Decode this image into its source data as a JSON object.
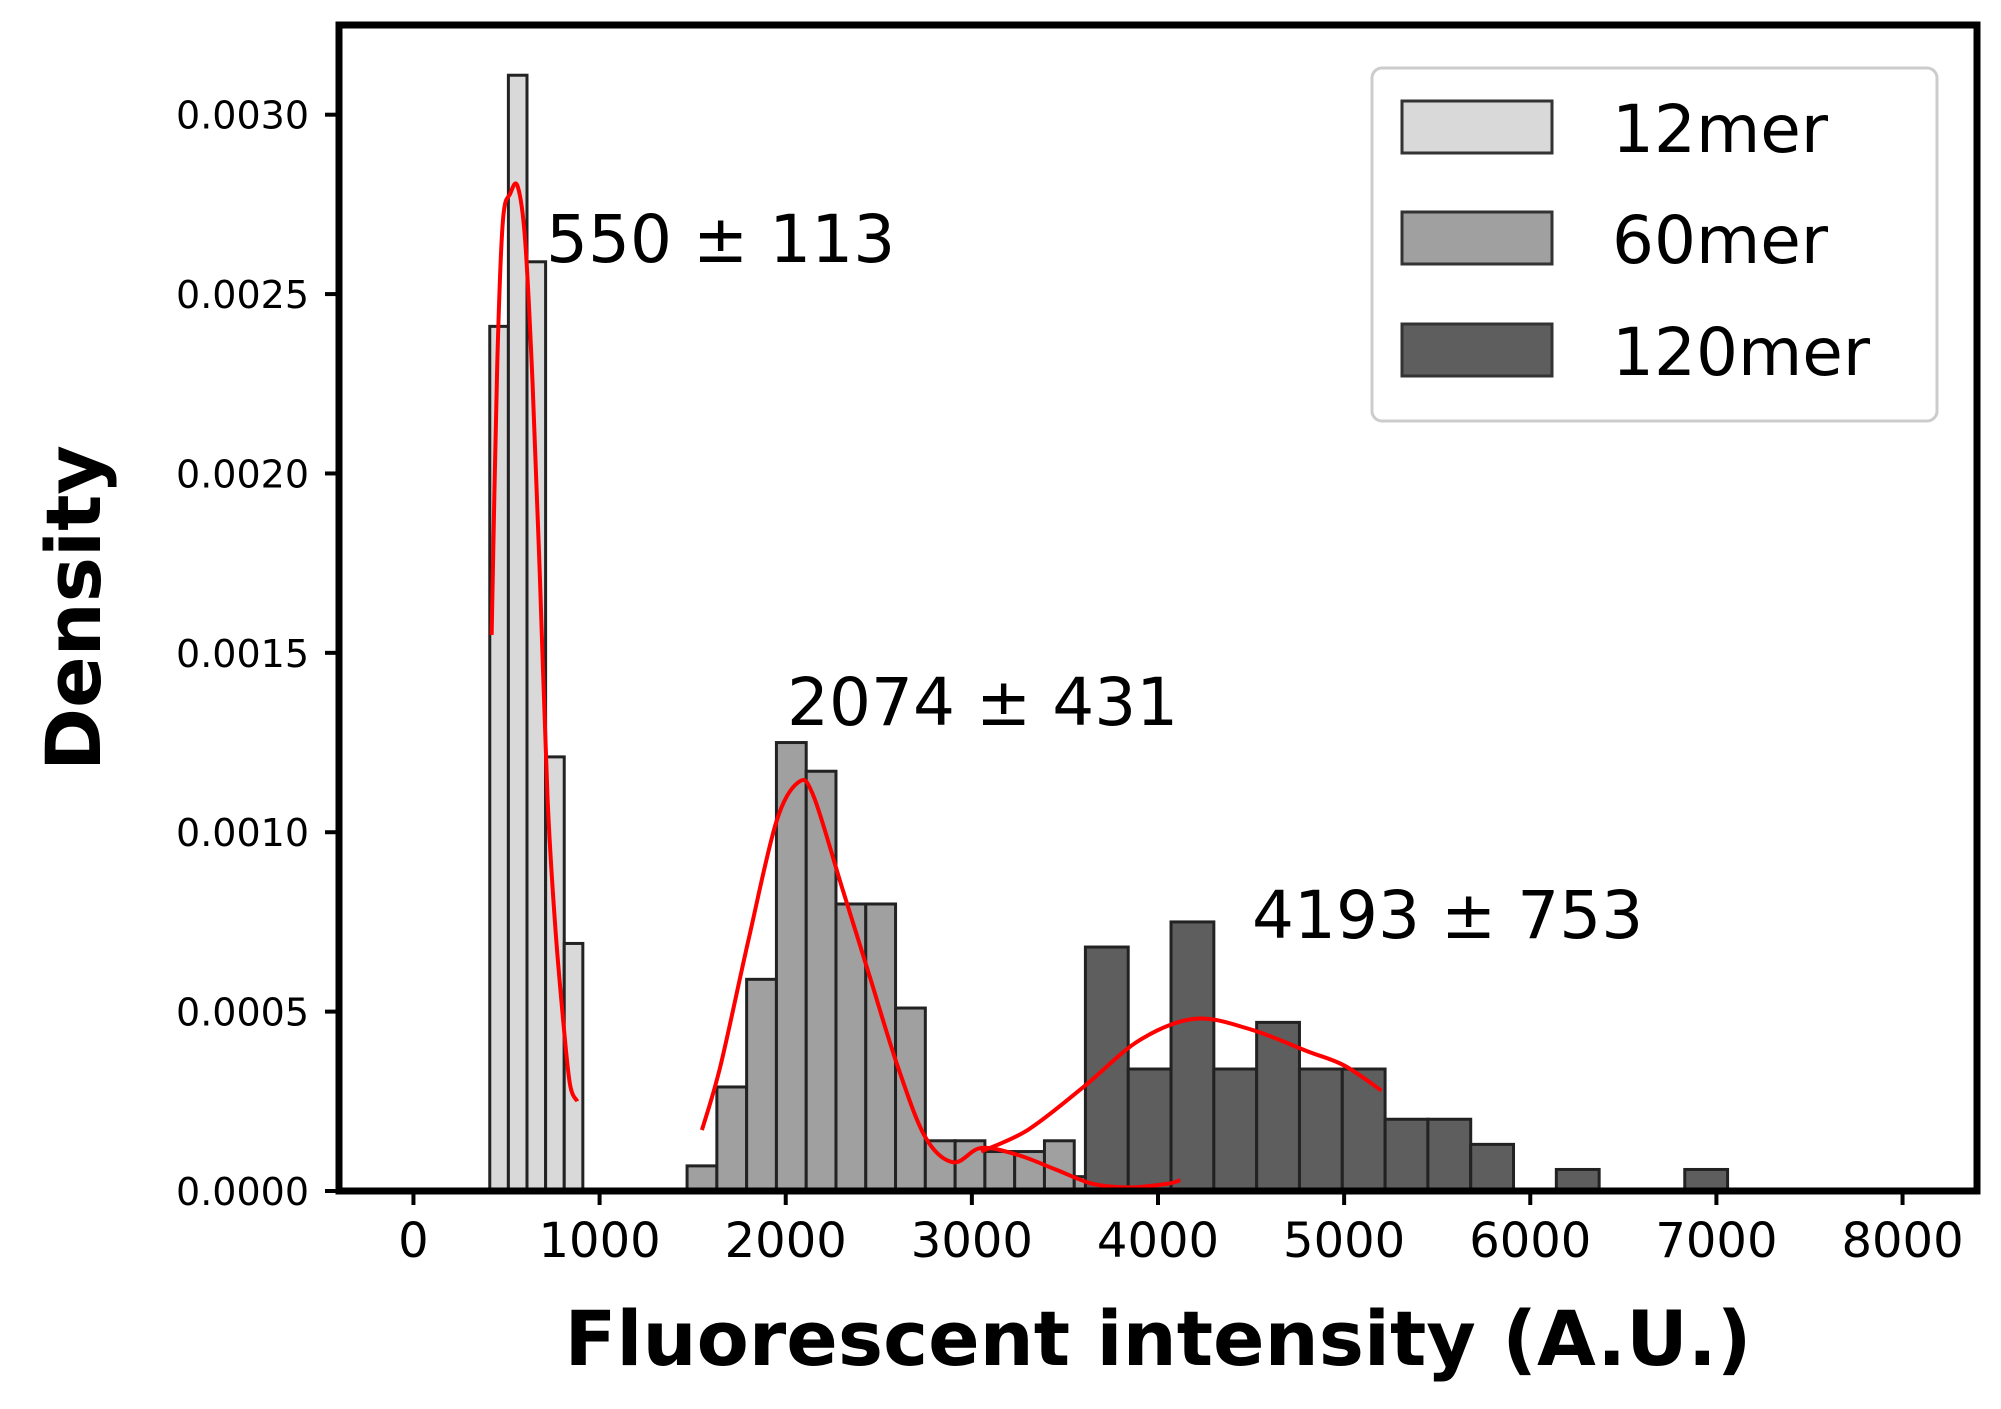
{
  "chart_data": {
    "type": "bar",
    "subtype": "histogram-with-kde",
    "xlabel": "Fluorescent intensity (A.U.)",
    "ylabel": "Density",
    "xlim": [
      -400,
      8400
    ],
    "ylim": [
      0,
      0.00325
    ],
    "xticks": [
      0,
      1000,
      2000,
      3000,
      4000,
      5000,
      6000,
      7000,
      8000
    ],
    "xtick_labels": [
      "0",
      "1000",
      "2000",
      "3000",
      "4000",
      "5000",
      "6000",
      "7000",
      "8000"
    ],
    "yticks": [
      0,
      0.0005,
      0.001,
      0.0015,
      0.002,
      0.0025,
      0.003
    ],
    "ytick_labels": [
      "0.0000",
      "0.0005",
      "0.0010",
      "0.0015",
      "0.0020",
      "0.0025",
      "0.0030"
    ],
    "grid": false,
    "legend_position": "top-right",
    "kde_color": "#ff0000",
    "series": [
      {
        "name": "12mer",
        "color": "#d9d9d9",
        "bins": [
          {
            "x0": 410,
            "x1": 510,
            "value": 0.00241
          },
          {
            "x0": 510,
            "x1": 610,
            "value": 0.00311
          },
          {
            "x0": 610,
            "x1": 710,
            "value": 0.00259
          },
          {
            "x0": 710,
            "x1": 810,
            "value": 0.00121
          },
          {
            "x0": 810,
            "x1": 910,
            "value": 0.00069
          }
        ],
        "kde": [
          [
            420,
            0.00155
          ],
          [
            450,
            0.0023
          ],
          [
            480,
            0.0027
          ],
          [
            520,
            0.00278
          ],
          [
            560,
            0.0028
          ],
          [
            600,
            0.00265
          ],
          [
            640,
            0.00225
          ],
          [
            680,
            0.0017
          ],
          [
            720,
            0.0011
          ],
          [
            760,
            0.00075
          ],
          [
            800,
            0.0005
          ],
          [
            840,
            0.0003
          ],
          [
            880,
            0.00025
          ]
        ],
        "annotation": "550 ± 113"
      },
      {
        "name": "60mer",
        "color": "#a0a0a0",
        "bins": [
          {
            "x0": 1470,
            "x1": 1630,
            "value": 7e-05
          },
          {
            "x0": 1630,
            "x1": 1790,
            "value": 0.00029
          },
          {
            "x0": 1790,
            "x1": 1950,
            "value": 0.00059
          },
          {
            "x0": 1950,
            "x1": 2110,
            "value": 0.00125
          },
          {
            "x0": 2110,
            "x1": 2270,
            "value": 0.00117
          },
          {
            "x0": 2270,
            "x1": 2430,
            "value": 0.0008
          },
          {
            "x0": 2430,
            "x1": 2590,
            "value": 0.0008
          },
          {
            "x0": 2590,
            "x1": 2750,
            "value": 0.00051
          },
          {
            "x0": 2750,
            "x1": 2910,
            "value": 0.00014
          },
          {
            "x0": 2910,
            "x1": 3070,
            "value": 0.00014
          },
          {
            "x0": 3070,
            "x1": 3230,
            "value": 0.00011
          },
          {
            "x0": 3230,
            "x1": 3390,
            "value": 0.00011
          },
          {
            "x0": 3390,
            "x1": 3550,
            "value": 0.00014
          },
          {
            "x0": 3550,
            "x1": 3710,
            "value": 4e-05
          }
        ],
        "kde": [
          [
            1550,
            0.00017
          ],
          [
            1650,
            0.00035
          ],
          [
            1800,
            0.0007
          ],
          [
            1950,
            0.00103
          ],
          [
            2070,
            0.00114
          ],
          [
            2150,
            0.0011
          ],
          [
            2300,
            0.00085
          ],
          [
            2450,
            0.0006
          ],
          [
            2600,
            0.00035
          ],
          [
            2750,
            0.00015
          ],
          [
            2900,
            8e-05
          ],
          [
            3050,
            0.00012
          ],
          [
            3250,
            0.0001
          ],
          [
            3450,
            6e-05
          ],
          [
            3650,
            2e-05
          ],
          [
            3850,
            1e-05
          ],
          [
            4050,
            2e-05
          ],
          [
            4120,
            3e-05
          ]
        ],
        "annotation": "2074 ± 431"
      },
      {
        "name": "120mer",
        "color": "#5e5e5e",
        "bins": [
          {
            "x0": 3610,
            "x1": 3840,
            "value": 0.00068
          },
          {
            "x0": 3840,
            "x1": 4070,
            "value": 0.00034
          },
          {
            "x0": 4070,
            "x1": 4300,
            "value": 0.00075
          },
          {
            "x0": 4300,
            "x1": 4530,
            "value": 0.00034
          },
          {
            "x0": 4530,
            "x1": 4760,
            "value": 0.00047
          },
          {
            "x0": 4760,
            "x1": 4990,
            "value": 0.00034
          },
          {
            "x0": 4990,
            "x1": 5220,
            "value": 0.00034
          },
          {
            "x0": 5220,
            "x1": 5450,
            "value": 0.0002
          },
          {
            "x0": 5450,
            "x1": 5680,
            "value": 0.0002
          },
          {
            "x0": 5680,
            "x1": 5910,
            "value": 0.00013
          },
          {
            "x0": 6140,
            "x1": 6370,
            "value": 6e-05
          },
          {
            "x0": 6830,
            "x1": 7060,
            "value": 6e-05
          }
        ],
        "kde": [
          [
            3050,
            0.00011
          ],
          [
            3300,
            0.00017
          ],
          [
            3600,
            0.00029
          ],
          [
            3900,
            0.00042
          ],
          [
            4200,
            0.00048
          ],
          [
            4500,
            0.00045
          ],
          [
            4800,
            0.00039
          ],
          [
            5000,
            0.00035
          ],
          [
            5200,
            0.00028
          ]
        ],
        "annotation": "4193 ± 753"
      }
    ]
  }
}
